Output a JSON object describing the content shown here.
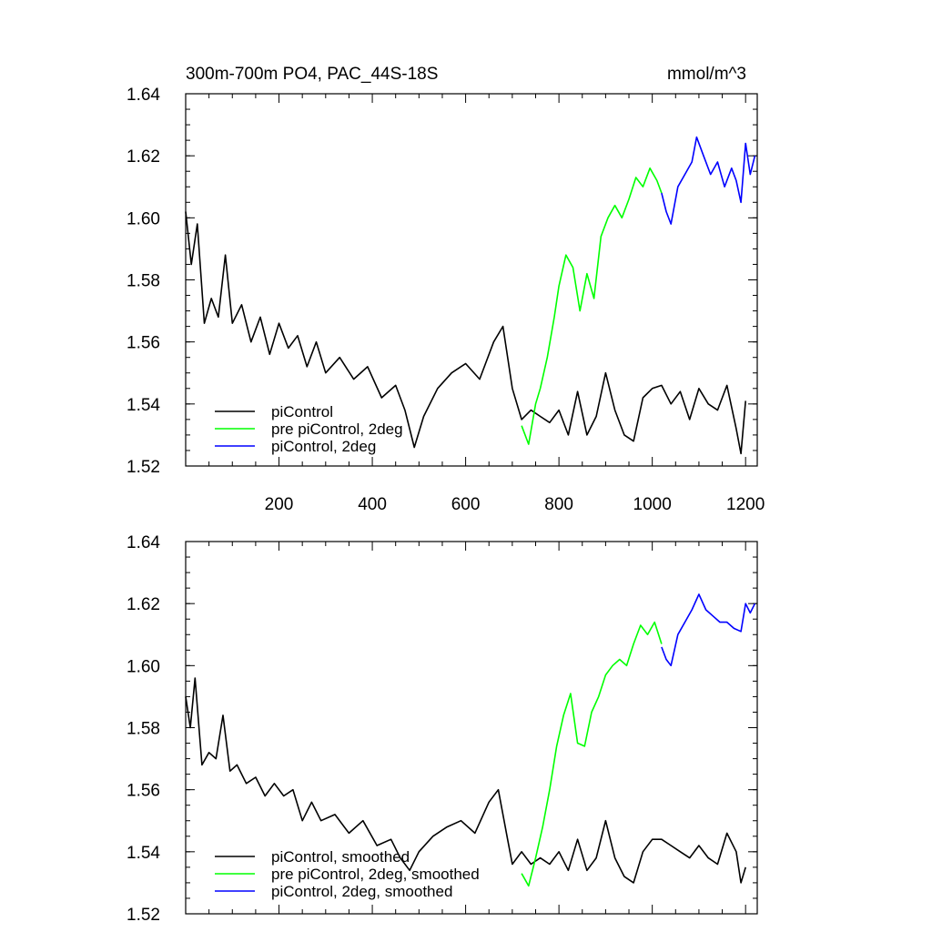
{
  "chart_data": [
    {
      "type": "line",
      "title": "300m-700m PO4, PAC_44S-18S",
      "units": "mmol/m^3",
      "xlim": [
        0,
        1225
      ],
      "ylim": [
        1.52,
        1.64
      ],
      "xticks": [
        "200",
        "400",
        "600",
        "800",
        "1000",
        "1200"
      ],
      "yticks": [
        "1.52",
        "1.54",
        "1.56",
        "1.58",
        "1.60",
        "1.62",
        "1.64"
      ],
      "legend_position": "bottom-left",
      "series": [
        {
          "name": "piControl",
          "color": "#000000",
          "x": [
            0,
            12,
            25,
            40,
            55,
            70,
            85,
            100,
            120,
            140,
            160,
            180,
            200,
            220,
            240,
            260,
            280,
            300,
            330,
            360,
            390,
            420,
            450,
            470,
            490,
            510,
            540,
            570,
            600,
            630,
            660,
            680,
            700,
            720,
            740,
            760,
            780,
            800,
            820,
            840,
            860,
            880,
            900,
            920,
            940,
            960,
            980,
            1000,
            1020,
            1040,
            1060,
            1080,
            1100,
            1120,
            1140,
            1160,
            1180,
            1190,
            1200
          ],
          "y": [
            1.602,
            1.585,
            1.598,
            1.566,
            1.574,
            1.568,
            1.588,
            1.566,
            1.572,
            1.56,
            1.568,
            1.556,
            1.566,
            1.558,
            1.562,
            1.552,
            1.56,
            1.55,
            1.555,
            1.548,
            1.552,
            1.542,
            1.546,
            1.538,
            1.526,
            1.536,
            1.545,
            1.55,
            1.553,
            1.548,
            1.56,
            1.565,
            1.545,
            1.535,
            1.538,
            1.536,
            1.534,
            1.538,
            1.53,
            1.544,
            1.53,
            1.536,
            1.55,
            1.538,
            1.53,
            1.528,
            1.542,
            1.545,
            1.546,
            1.54,
            1.544,
            1.535,
            1.545,
            1.54,
            1.538,
            1.546,
            1.532,
            1.524,
            1.541
          ]
        },
        {
          "name": "pre piControl, 2deg",
          "color": "#00ff00",
          "x": [
            720,
            735,
            750,
            760,
            775,
            790,
            800,
            815,
            830,
            845,
            860,
            875,
            890,
            905,
            920,
            935,
            950,
            965,
            980,
            995,
            1010,
            1020
          ],
          "y": [
            1.533,
            1.527,
            1.54,
            1.545,
            1.555,
            1.568,
            1.578,
            1.588,
            1.584,
            1.57,
            1.582,
            1.574,
            1.594,
            1.6,
            1.604,
            1.6,
            1.606,
            1.613,
            1.61,
            1.616,
            1.612,
            1.608
          ]
        },
        {
          "name": "piControl, 2deg",
          "color": "#0000ff",
          "x": [
            1020,
            1030,
            1040,
            1055,
            1070,
            1085,
            1095,
            1110,
            1125,
            1140,
            1155,
            1170,
            1180,
            1190,
            1200,
            1210,
            1220
          ],
          "y": [
            1.608,
            1.602,
            1.598,
            1.61,
            1.614,
            1.618,
            1.626,
            1.62,
            1.614,
            1.618,
            1.61,
            1.616,
            1.612,
            1.605,
            1.624,
            1.614,
            1.62
          ]
        }
      ]
    },
    {
      "type": "line",
      "title": "",
      "xlim": [
        0,
        1225
      ],
      "ylim": [
        1.52,
        1.64
      ],
      "yticks": [
        "1.52",
        "1.54",
        "1.56",
        "1.58",
        "1.60",
        "1.62",
        "1.64"
      ],
      "legend_position": "bottom-left",
      "series": [
        {
          "name": "piControl, smoothed",
          "color": "#000000",
          "x": [
            0,
            10,
            20,
            35,
            50,
            65,
            80,
            95,
            110,
            130,
            150,
            170,
            190,
            210,
            230,
            250,
            270,
            290,
            320,
            350,
            380,
            410,
            440,
            460,
            480,
            500,
            530,
            560,
            590,
            620,
            650,
            670,
            690,
            700,
            720,
            740,
            760,
            780,
            800,
            820,
            840,
            860,
            880,
            900,
            920,
            940,
            960,
            980,
            1000,
            1020,
            1040,
            1060,
            1080,
            1100,
            1120,
            1140,
            1160,
            1180,
            1190,
            1200
          ],
          "y": [
            1.59,
            1.58,
            1.596,
            1.568,
            1.572,
            1.57,
            1.584,
            1.566,
            1.568,
            1.562,
            1.564,
            1.558,
            1.562,
            1.558,
            1.56,
            1.55,
            1.556,
            1.55,
            1.552,
            1.546,
            1.55,
            1.542,
            1.544,
            1.538,
            1.534,
            1.54,
            1.545,
            1.548,
            1.55,
            1.546,
            1.556,
            1.56,
            1.544,
            1.536,
            1.54,
            1.536,
            1.538,
            1.536,
            1.54,
            1.534,
            1.544,
            1.534,
            1.538,
            1.55,
            1.538,
            1.532,
            1.53,
            1.54,
            1.544,
            1.544,
            1.542,
            1.54,
            1.538,
            1.542,
            1.538,
            1.536,
            1.546,
            1.54,
            1.53,
            1.535
          ]
        },
        {
          "name": "pre piControl, 2deg, smoothed",
          "color": "#00ff00",
          "x": [
            720,
            735,
            750,
            765,
            780,
            795,
            810,
            825,
            840,
            855,
            870,
            885,
            900,
            915,
            930,
            945,
            960,
            975,
            990,
            1005,
            1020
          ],
          "y": [
            1.533,
            1.529,
            1.538,
            1.548,
            1.56,
            1.574,
            1.584,
            1.591,
            1.575,
            1.574,
            1.585,
            1.59,
            1.597,
            1.6,
            1.602,
            1.6,
            1.607,
            1.613,
            1.61,
            1.614,
            1.607
          ]
        },
        {
          "name": "piControl, 2deg, smoothed",
          "color": "#0000ff",
          "x": [
            1020,
            1030,
            1040,
            1055,
            1070,
            1085,
            1100,
            1115,
            1130,
            1145,
            1160,
            1175,
            1190,
            1200,
            1210,
            1220
          ],
          "y": [
            1.606,
            1.602,
            1.6,
            1.61,
            1.614,
            1.618,
            1.623,
            1.618,
            1.616,
            1.614,
            1.614,
            1.612,
            1.611,
            1.62,
            1.617,
            1.62
          ]
        }
      ]
    }
  ]
}
